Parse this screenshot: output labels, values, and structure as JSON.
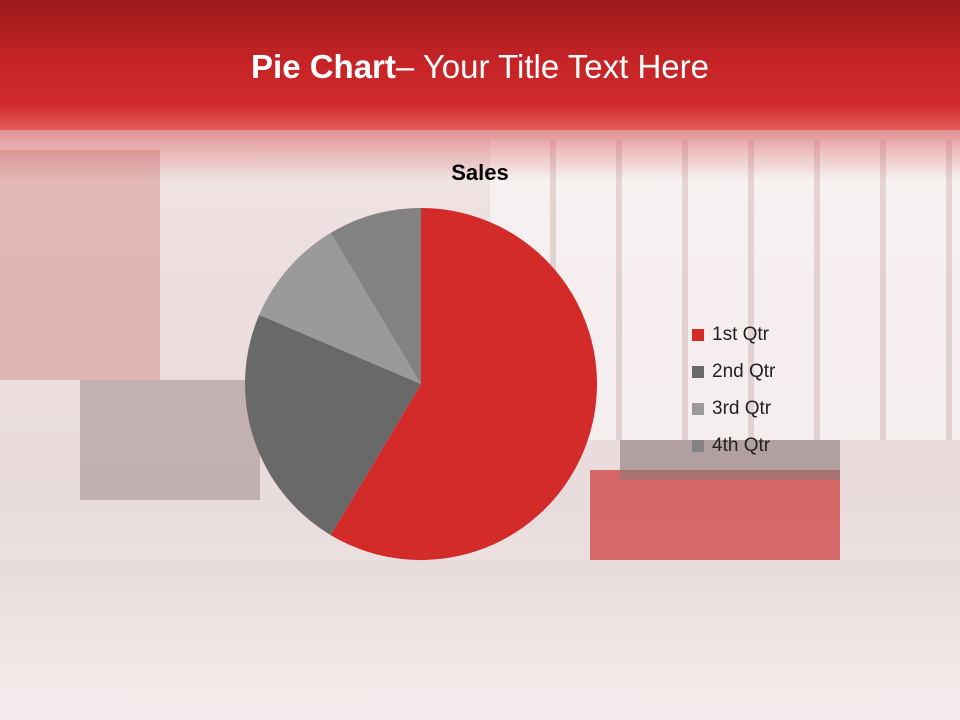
{
  "slide": {
    "title_bold": "Pie Chart",
    "title_rest": "– Your Title Text Here"
  },
  "chart_data": {
    "type": "pie",
    "title": "Sales",
    "categories": [
      "1st Qtr",
      "2nd Qtr",
      "3rd Qtr",
      "4th Qtr"
    ],
    "values": [
      8.2,
      3.2,
      1.4,
      1.2
    ],
    "colors": [
      "#d32a2a",
      "#696969",
      "#9a9a9a",
      "#828282"
    ],
    "legend_position": "right"
  }
}
